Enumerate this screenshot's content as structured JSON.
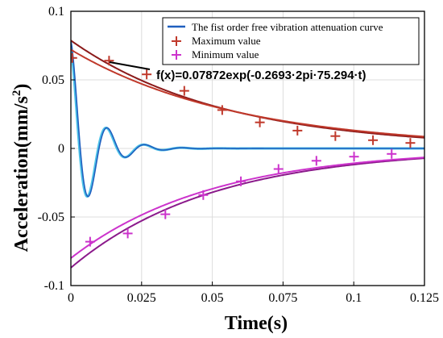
{
  "chart_data": {
    "type": "line",
    "xlabel": "Time(s)",
    "ylabel": "Acceleration(mm/s",
    "ylabel_sup": "2",
    "ylabel_close": ")",
    "xlim": [
      0,
      0.125
    ],
    "ylim": [
      -0.1,
      0.1
    ],
    "xticks": [
      0,
      0.025,
      0.05,
      0.075,
      0.1,
      0.125
    ],
    "xtick_labels": [
      "0",
      "0.025",
      "0.05",
      "0.075",
      "0.1",
      "0.125"
    ],
    "yticks": [
      0.1,
      0.05,
      0,
      -0.05,
      -0.1
    ],
    "ytick_labels": [
      "0.1",
      "0.05",
      "0",
      "-0.05",
      "-0.1"
    ],
    "grid": true,
    "legend_position": "top-right",
    "legend": [
      {
        "label": "The fist order free vibration attenuation curve",
        "color": "#1f5fbf",
        "marker": "line"
      },
      {
        "label": "Maximum value",
        "color": "#c0392b",
        "marker": "+"
      },
      {
        "label": "Minimum value",
        "color": "#cc33cc",
        "marker": "+"
      }
    ],
    "annotation": "f(x)=0.07872exp(-0.2693·2pi·75.294·t)",
    "signal": {
      "amplitude": 0.0787,
      "decay": 127.4,
      "frequency_hz": 75.3
    },
    "maximum_points": {
      "x": [
        0.0005,
        0.0135,
        0.0268,
        0.0401,
        0.0535,
        0.0668,
        0.0801,
        0.0935,
        0.1068,
        0.12
      ],
      "y": [
        0.066,
        0.064,
        0.054,
        0.042,
        0.028,
        0.019,
        0.013,
        0.009,
        0.006,
        0.004
      ]
    },
    "minimum_points": {
      "x": [
        0.0068,
        0.0201,
        0.0334,
        0.0468,
        0.0601,
        0.0734,
        0.0868,
        0.1001,
        0.1134
      ],
      "y": [
        -0.068,
        -0.062,
        -0.048,
        -0.034,
        -0.024,
        -0.015,
        -0.009,
        -0.006,
        -0.004
      ]
    },
    "upper_envelope": [
      {
        "coef": 0.0787,
        "decay": 18.5,
        "color": "#8b1a1a"
      },
      {
        "coef": 0.072,
        "decay": 17.0,
        "color": "#c0392b"
      }
    ],
    "lower_envelope": [
      {
        "coef": -0.087,
        "decay": 20.0,
        "color": "#8b1a8b"
      },
      {
        "coef": -0.08,
        "decay": 20.0,
        "color": "#cc33cc"
      }
    ],
    "colors": {
      "signal_dark": "#1f5fbf",
      "signal_light": "#4fc3e8",
      "max_marker": "#c0392b",
      "min_marker": "#cc33cc"
    }
  }
}
